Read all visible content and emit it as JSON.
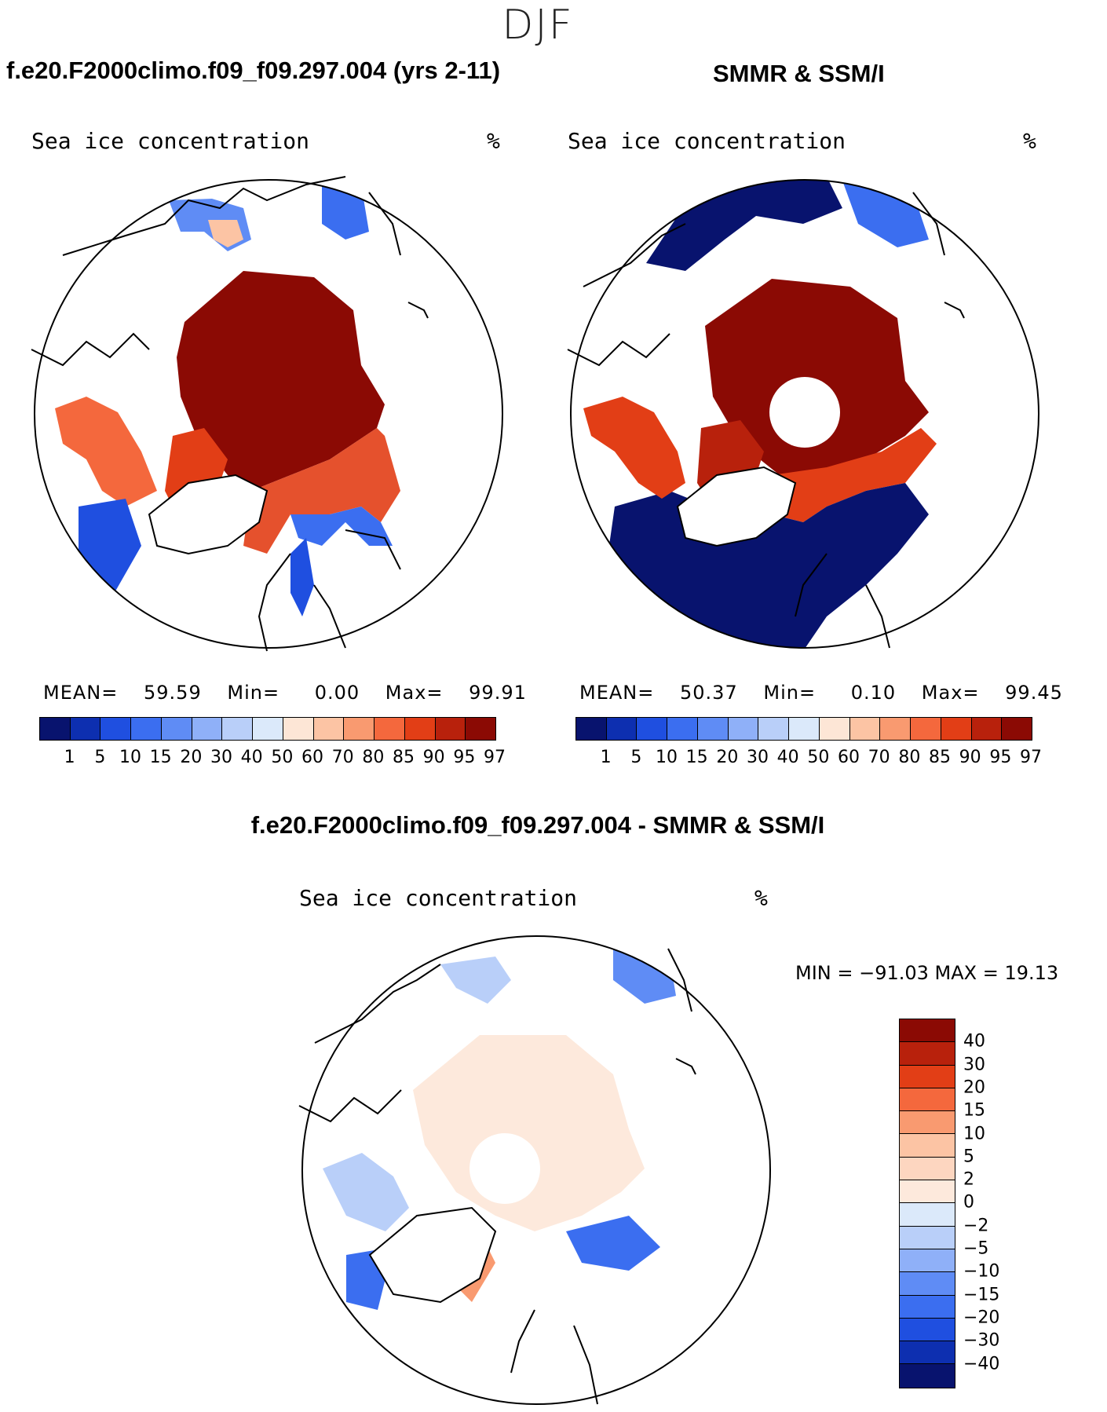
{
  "figure": {
    "season": "DJF"
  },
  "top_left": {
    "header": "f.e20.F2000climo.f09_f09.297.004 (yrs 2-11)",
    "variable": "Sea ice concentration",
    "units": "%",
    "stats": {
      "mean_label": "MEAN=",
      "mean": "59.59",
      "min_label": "Min=",
      "min": "0.00",
      "max_label": "Max=",
      "max": "99.91"
    }
  },
  "top_right": {
    "header": "SMMR & SSM/I",
    "variable": "Sea ice concentration",
    "units": "%",
    "stats": {
      "mean_label": "MEAN=",
      "mean": "50.37",
      "min_label": "Min=",
      "min": "0.10",
      "max_label": "Max=",
      "max": "99.45"
    }
  },
  "bottom": {
    "header": "f.e20.F2000climo.f09_f09.297.004 - SMMR & SSM/I",
    "variable": "Sea ice concentration",
    "units": "%",
    "range_text": "MIN = −91.03 MAX =   19.13"
  },
  "colorbar_abs": {
    "labels": [
      "1",
      "5",
      "10",
      "15",
      "20",
      "30",
      "40",
      "50",
      "60",
      "70",
      "80",
      "85",
      "90",
      "95",
      "97"
    ],
    "colors": [
      "#08136e",
      "#0d2fb0",
      "#1f4fe0",
      "#3b6ef0",
      "#5f8cf5",
      "#8fb0f8",
      "#b9cff9",
      "#dbe9fa",
      "#fde6d6",
      "#fcc4a4",
      "#f99a70",
      "#f4683d",
      "#e23e16",
      "#b8210c",
      "#8b0a04"
    ]
  },
  "colorbar_diff": {
    "labels": [
      "40",
      "30",
      "20",
      "15",
      "10",
      "5",
      "2",
      "0",
      "−2",
      "−5",
      "−10",
      "−15",
      "−20",
      "−30",
      "−40"
    ],
    "colors": [
      "#8b0a04",
      "#b8210c",
      "#e23e16",
      "#f4683d",
      "#f99a70",
      "#fcc4a4",
      "#fdd6c0",
      "#fde9dc",
      "#dbe9fa",
      "#b9cff9",
      "#8fb0f8",
      "#5f8cf5",
      "#3b6ef0",
      "#1f4fe0",
      "#0d2fb0",
      "#08136e"
    ]
  }
}
